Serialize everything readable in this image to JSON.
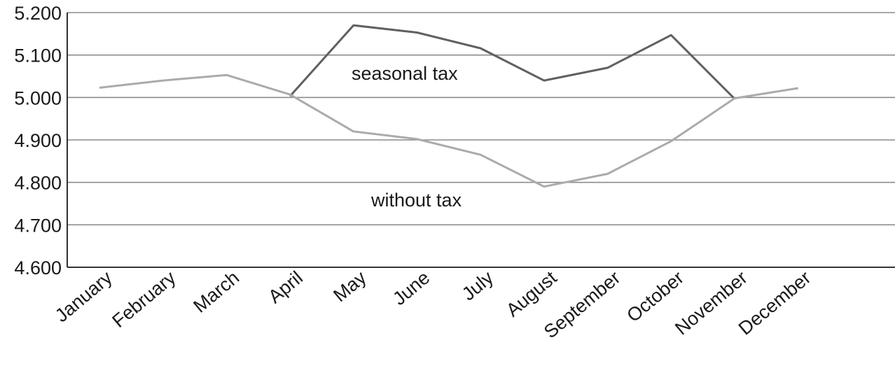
{
  "chart_data": {
    "type": "line",
    "title": "",
    "xlabel": "",
    "ylabel": "",
    "categories": [
      "January",
      "February",
      "March",
      "April",
      "May",
      "June",
      "July",
      "August",
      "September",
      "October",
      "November",
      "December"
    ],
    "ylim": [
      4.6,
      5.2
    ],
    "yticks": [
      "5.200",
      "5.100",
      "5.000",
      "4.900",
      "4.800",
      "4.700",
      "4.600"
    ],
    "ytick_values": [
      5.2,
      5.1,
      5.0,
      4.9,
      4.8,
      4.7,
      4.6
    ],
    "grid": true,
    "series": [
      {
        "name": "seasonal tax",
        "color": "#606060",
        "values": [
          null,
          null,
          null,
          5.003,
          5.17,
          5.153,
          5.116,
          5.04,
          5.07,
          5.147,
          4.997,
          null
        ]
      },
      {
        "name": "without tax",
        "color": "#ababab",
        "values": [
          5.023,
          5.04,
          5.053,
          5.007,
          4.92,
          4.902,
          4.865,
          4.79,
          4.82,
          4.897,
          4.998,
          5.022
        ]
      }
    ],
    "annotations": [
      {
        "text": "seasonal tax",
        "series": 0
      },
      {
        "text": "without tax",
        "series": 1
      }
    ]
  }
}
